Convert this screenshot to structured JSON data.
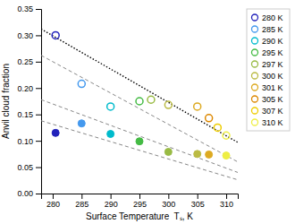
{
  "chart_data": {
    "type": "scatter",
    "xlabel": "Surface Temperature  Tₛ, K",
    "ylabel": "Anvil cloud fraction",
    "xlim": [
      278,
      312
    ],
    "ylim": [
      0,
      0.35
    ],
    "xticks": [
      280,
      285,
      290,
      295,
      300,
      305,
      310
    ],
    "yticks": [
      {
        "value": 0,
        "label": "0.00"
      },
      0.05,
      {
        "value": 0.1,
        "label": "0.10"
      },
      0.15,
      {
        "value": 0.2,
        "label": "0.20"
      },
      0.25,
      {
        "value": 0.3,
        "label": "0.30"
      },
      0.35
    ],
    "legend": "right",
    "series": [
      {
        "name": "280 K",
        "type": "scatter",
        "marker": "open-circle",
        "color": "#2222bb",
        "x": [
          280.5
        ],
        "values": [
          0.3
        ]
      },
      {
        "name": "285 K",
        "type": "scatter",
        "marker": "open-circle",
        "color": "#4499ee",
        "x": [
          285
        ],
        "values": [
          0.208
        ]
      },
      {
        "name": "290 K",
        "type": "scatter",
        "marker": "open-circle",
        "color": "#00bbcc",
        "x": [
          290
        ],
        "values": [
          0.165
        ]
      },
      {
        "name": "295 K",
        "type": "scatter",
        "marker": "open-circle",
        "color": "#44bb44",
        "x": [
          295
        ],
        "values": [
          0.175
        ]
      },
      {
        "name": "297 K",
        "type": "scatter",
        "marker": "open-circle",
        "color": "#99bb44",
        "x": [
          297
        ],
        "values": [
          0.178
        ]
      },
      {
        "name": "300 K",
        "type": "scatter",
        "marker": "open-circle",
        "color": "#bbbb44",
        "x": [
          300
        ],
        "values": [
          0.168
        ]
      },
      {
        "name": "301 K",
        "type": "scatter",
        "marker": "open-circle",
        "color": "#ddaa22",
        "x": [
          305
        ],
        "values": [
          0.165
        ]
      },
      {
        "name": "305 K",
        "type": "scatter",
        "marker": "open-circle",
        "color": "#dd8800",
        "x": [
          307
        ],
        "values": [
          0.143
        ]
      },
      {
        "name": "307 K",
        "type": "scatter",
        "marker": "open-circle",
        "color": "#eecc00",
        "x": [
          308.5
        ],
        "values": [
          0.125
        ]
      },
      {
        "name": "310 K",
        "type": "scatter",
        "marker": "open-circle",
        "color": "#eeee44",
        "x": [
          310
        ],
        "values": [
          0.11
        ]
      },
      {
        "type": "scatter",
        "marker": "filled-circle",
        "colors": [
          "#2222bb",
          "#4499ee",
          "#00bbcc",
          "#44bb44",
          "#99bb44",
          "#bbbb44",
          "#ddaa22",
          "#eeee44"
        ],
        "x": [
          280.5,
          285,
          290,
          295,
          300,
          305,
          307,
          310
        ],
        "values": [
          0.115,
          0.133,
          0.113,
          0.099,
          0.079,
          0.075,
          0.074,
          0.072
        ]
      },
      {
        "type": "line",
        "line_style": "dotted",
        "color": "#000000",
        "x": [
          278,
          312
        ],
        "values": [
          0.312,
          0.097
        ]
      },
      {
        "type": "line",
        "line_style": "dashed",
        "color": "#888888",
        "x": [
          278,
          312
        ],
        "values": [
          0.262,
          0.06
        ]
      },
      {
        "type": "line",
        "line_style": "dashed",
        "color": "#888888",
        "x": [
          278,
          312
        ],
        "values": [
          0.178,
          0.04
        ]
      },
      {
        "type": "line",
        "line_style": "dashed",
        "color": "#888888",
        "x": [
          278,
          312
        ],
        "values": [
          0.138,
          0.026
        ]
      }
    ]
  }
}
